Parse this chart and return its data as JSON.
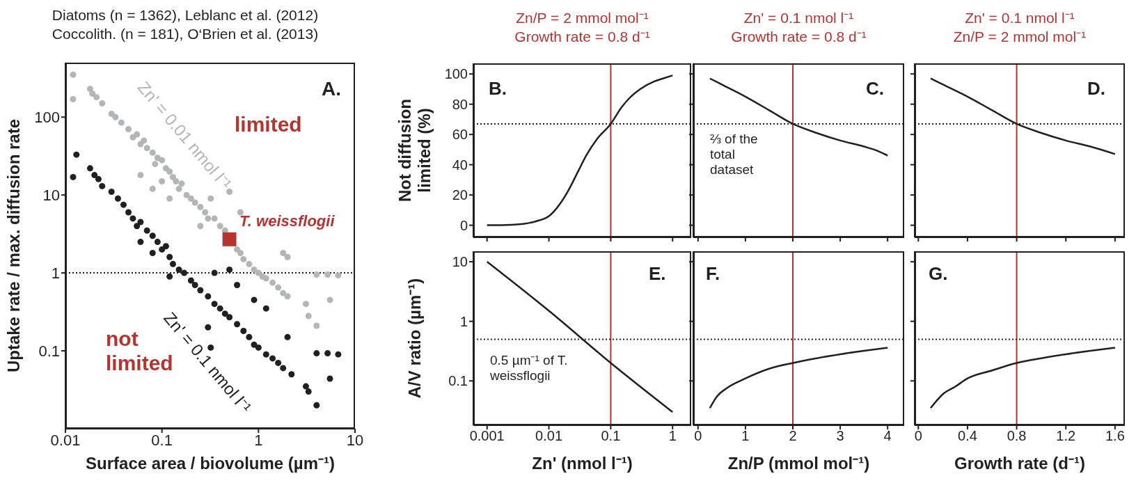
{
  "chart_data": [
    {
      "type": "scatter",
      "title": "Diatoms (n = 1362), Leblanc et al. (2012)",
      "subtitle": "Coccolith. (n = 181), O‘Brien et al. (2013)",
      "xlabel": "Surface area / biovolume (µm⁻¹)",
      "ylabel": "Uptake rate / max. diffusion rate",
      "log": "xy",
      "xlim": [
        0.01,
        10
      ],
      "xticks": [
        0.01,
        0.1,
        1,
        10
      ],
      "ylim": [
        0.01,
        500
      ],
      "yticks": [
        0.1,
        1,
        10,
        100
      ],
      "marker": "circle",
      "annotations": [
        "A.",
        "limited",
        "not limited"
      ],
      "ref_lines": [
        {
          "axis": "y",
          "value": 1,
          "color": "#231f20",
          "line_style": "dotted"
        }
      ],
      "series": [
        {
          "name": "Zn' = 0.01 nmol l⁻¹",
          "color": "#b3b5b6",
          "x": [
            0.012,
            0.012,
            0.018,
            0.019,
            0.021,
            0.024,
            0.03,
            0.033,
            0.038,
            0.045,
            0.05,
            0.055,
            0.06,
            0.065,
            0.07,
            0.08,
            0.085,
            0.09,
            0.1,
            0.11,
            0.12,
            0.13,
            0.14,
            0.15,
            0.16,
            0.18,
            0.2,
            0.22,
            0.25,
            0.28,
            0.3,
            0.32,
            0.35,
            0.4,
            0.45,
            0.6,
            0.65,
            0.7,
            0.8,
            0.9,
            1,
            1.1,
            1.2,
            1.4,
            1.6,
            1.8,
            2,
            2,
            1.8,
            3.1,
            3.3,
            4,
            4,
            5.2,
            5.5,
            6.7,
            0.12,
            0.08,
            0.06,
            0.1,
            0.25,
            0.5,
            0.65
          ],
          "values": [
            350,
            170,
            230,
            200,
            180,
            150,
            110,
            100,
            85,
            70,
            55,
            60,
            45,
            50,
            40,
            35,
            25,
            30,
            28,
            22,
            20,
            17,
            15,
            12,
            14,
            10,
            9,
            8,
            7,
            6,
            5,
            9,
            5,
            4,
            3.5,
            2,
            1.8,
            1.5,
            1.3,
            1.1,
            1,
            0.9,
            0.85,
            0.75,
            0.65,
            0.55,
            0.5,
            1.6,
            1.8,
            0.4,
            0.28,
            0.95,
            0.21,
            0.95,
            0.45,
            0.93,
            9,
            12,
            18,
            15,
            4,
            11,
            6
          ]
        },
        {
          "name": "Zn' = 0.1 nmol l⁻¹",
          "color": "#231f20",
          "x": [
            0.012,
            0.013,
            0.018,
            0.02,
            0.022,
            0.024,
            0.03,
            0.035,
            0.04,
            0.045,
            0.05,
            0.055,
            0.06,
            0.07,
            0.08,
            0.09,
            0.1,
            0.11,
            0.12,
            0.13,
            0.15,
            0.17,
            0.2,
            0.22,
            0.25,
            0.3,
            0.35,
            0.4,
            0.45,
            0.5,
            0.6,
            0.7,
            0.8,
            0.9,
            1,
            1.2,
            1.4,
            1.6,
            1.8,
            2.2,
            2,
            1.2,
            0.9,
            0.6,
            0.5,
            0.35,
            0.12,
            0.32,
            0.3,
            0.08,
            0.06,
            4,
            5.2,
            6.7,
            5.5,
            4,
            3.1,
            3.3
          ],
          "values": [
            17,
            33,
            22,
            18,
            16,
            13,
            11,
            9,
            7.5,
            6,
            5,
            4,
            4.5,
            3.5,
            3,
            2.5,
            2,
            2.2,
            1.6,
            1.3,
            1.1,
            1,
            0.8,
            0.7,
            0.6,
            0.5,
            0.4,
            0.35,
            0.3,
            0.27,
            0.22,
            0.18,
            0.15,
            0.12,
            0.11,
            0.09,
            0.08,
            0.07,
            0.06,
            0.05,
            0.15,
            0.35,
            0.45,
            0.7,
            1.1,
            1,
            0.9,
            0.11,
            0.2,
            1.8,
            2.5,
            0.093,
            0.093,
            0.09,
            0.044,
            0.02,
            0.035,
            0.03
          ]
        },
        {
          "name": "T. weissflogii",
          "color": "#b6332f",
          "marker": "square",
          "x": [
            0.5
          ],
          "values": [
            2.7
          ]
        }
      ]
    },
    {
      "type": "line",
      "title": "Zn/P = 2 mmol mol⁻¹",
      "subtitle": "Growth rate = 0.8 d⁻¹",
      "ylabel": "Not diffusion limited (%)",
      "log": "x",
      "xlim": [
        0.0006,
        2
      ],
      "xticks": [
        0.001,
        0.01,
        0.1,
        1
      ],
      "ylim": [
        -8,
        107
      ],
      "yticks": [
        0,
        20,
        40,
        60,
        80,
        100
      ],
      "tick_labels": "y",
      "annotations": [
        "B."
      ],
      "ref_lines": [
        {
          "axis": "x",
          "value": 0.1,
          "color": "#b6332f",
          "line_style": "solid"
        },
        {
          "axis": "y",
          "value": 67,
          "color": "#231f20",
          "line_style": "dotted"
        }
      ],
      "series": [
        {
          "color": "#231f20",
          "x": [
            0.001,
            0.002,
            0.004,
            0.006,
            0.01,
            0.015,
            0.02,
            0.03,
            0.04,
            0.06,
            0.1,
            0.15,
            0.2,
            0.3,
            0.5,
            0.7,
            1
          ],
          "values": [
            0,
            0.2,
            1,
            2.5,
            6,
            14,
            22,
            36,
            46,
            57,
            67,
            78,
            84,
            90,
            95,
            97,
            99
          ]
        }
      ]
    },
    {
      "type": "line",
      "title": "Zn' = 0.1 nmol l⁻¹",
      "subtitle": "Growth rate = 0.8 d⁻¹",
      "xlim": [
        -0.1,
        4.35
      ],
      "xticks": [
        0,
        1,
        2,
        3,
        4
      ],
      "ylim": [
        -8,
        107
      ],
      "yticks": [
        0,
        20,
        40,
        60,
        80,
        100
      ],
      "tick_labels": false,
      "annotations": [
        "C.",
        "⅔ of the total dataset"
      ],
      "ref_lines": [
        {
          "axis": "x",
          "value": 2,
          "color": "#b6332f",
          "line_style": "solid"
        },
        {
          "axis": "y",
          "value": 67,
          "color": "#231f20",
          "line_style": "dotted"
        }
      ],
      "series": [
        {
          "color": "#231f20",
          "x": [
            0.25,
            0.5,
            1,
            1.5,
            2,
            2.5,
            3,
            3.5,
            3.8,
            4
          ],
          "values": [
            97,
            93,
            85,
            76,
            67,
            61,
            56,
            52,
            49,
            46
          ]
        }
      ]
    },
    {
      "type": "line",
      "title": "Zn' = 0.1 nmol l⁻¹",
      "subtitle": "Zn/P = 2 mmol mol⁻¹",
      "xlim": [
        -0.03,
        1.68
      ],
      "xticks": [
        0,
        0.4,
        0.8,
        1.2,
        1.6
      ],
      "ylim": [
        -8,
        107
      ],
      "yticks": [
        0,
        20,
        40,
        60,
        80,
        100
      ],
      "tick_labels": false,
      "annotations": [
        "D."
      ],
      "ref_lines": [
        {
          "axis": "x",
          "value": 0.8,
          "color": "#b6332f",
          "line_style": "solid"
        },
        {
          "axis": "y",
          "value": 67,
          "color": "#231f20",
          "line_style": "dotted"
        }
      ],
      "series": [
        {
          "color": "#231f20",
          "x": [
            0.1,
            0.2,
            0.4,
            0.6,
            0.8,
            1,
            1.2,
            1.4,
            1.6
          ],
          "values": [
            97,
            93,
            85,
            76,
            67,
            61,
            56,
            52,
            47
          ]
        }
      ]
    },
    {
      "type": "line",
      "xlabel": "Zn' (nmol l⁻¹)",
      "ylabel": "A/V ratio (µm⁻¹)",
      "log": "xy",
      "xlim": [
        0.0006,
        2
      ],
      "xticks": [
        0.001,
        0.01,
        0.1,
        1
      ],
      "ylim": [
        0.018,
        15
      ],
      "yticks": [
        0.1,
        1,
        10
      ],
      "annotations": [
        "E.",
        "0.5 µm⁻¹ of T. weissflogii"
      ],
      "ref_lines": [
        {
          "axis": "x",
          "value": 0.1,
          "color": "#b6332f",
          "line_style": "solid"
        },
        {
          "axis": "y",
          "value": 0.5,
          "color": "#231f20",
          "line_style": "dotted"
        }
      ],
      "series": [
        {
          "color": "#231f20",
          "x": [
            0.001,
            0.01,
            0.1,
            1
          ],
          "values": [
            10,
            1.5,
            0.2,
            0.03
          ]
        }
      ]
    },
    {
      "type": "line",
      "xlabel": "Zn/P (mmol mol⁻¹)",
      "log": "y",
      "xlim": [
        -0.1,
        4.35
      ],
      "xticks": [
        0,
        1,
        2,
        3,
        4
      ],
      "ylim": [
        0.018,
        15
      ],
      "yticks": [
        0.1,
        1,
        10
      ],
      "tick_labels": "x",
      "annotations": [
        "F."
      ],
      "ref_lines": [
        {
          "axis": "x",
          "value": 2,
          "color": "#b6332f",
          "line_style": "solid"
        },
        {
          "axis": "y",
          "value": 0.5,
          "color": "#231f20",
          "line_style": "dotted"
        }
      ],
      "series": [
        {
          "color": "#231f20",
          "x": [
            0.25,
            0.4,
            0.6,
            1,
            1.5,
            2,
            2.5,
            3,
            3.5,
            4
          ],
          "values": [
            0.035,
            0.055,
            0.075,
            0.11,
            0.16,
            0.2,
            0.24,
            0.28,
            0.32,
            0.36
          ]
        }
      ]
    },
    {
      "type": "line",
      "xlabel": "Growth rate (d⁻¹)",
      "log": "y",
      "xlim": [
        -0.03,
        1.68
      ],
      "xticks": [
        0,
        0.4,
        0.8,
        1.2,
        1.6
      ],
      "ylim": [
        0.018,
        15
      ],
      "yticks": [
        0.1,
        1,
        10
      ],
      "tick_labels": "x",
      "annotations": [
        "G."
      ],
      "ref_lines": [
        {
          "axis": "x",
          "value": 0.8,
          "color": "#b6332f",
          "line_style": "solid"
        },
        {
          "axis": "y",
          "value": 0.5,
          "color": "#231f20",
          "line_style": "dotted"
        }
      ],
      "series": [
        {
          "color": "#231f20",
          "x": [
            0.1,
            0.2,
            0.3,
            0.4,
            0.6,
            0.8,
            1,
            1.2,
            1.4,
            1.6
          ],
          "values": [
            0.035,
            0.06,
            0.08,
            0.11,
            0.15,
            0.2,
            0.24,
            0.28,
            0.32,
            0.36
          ]
        }
      ]
    }
  ]
}
